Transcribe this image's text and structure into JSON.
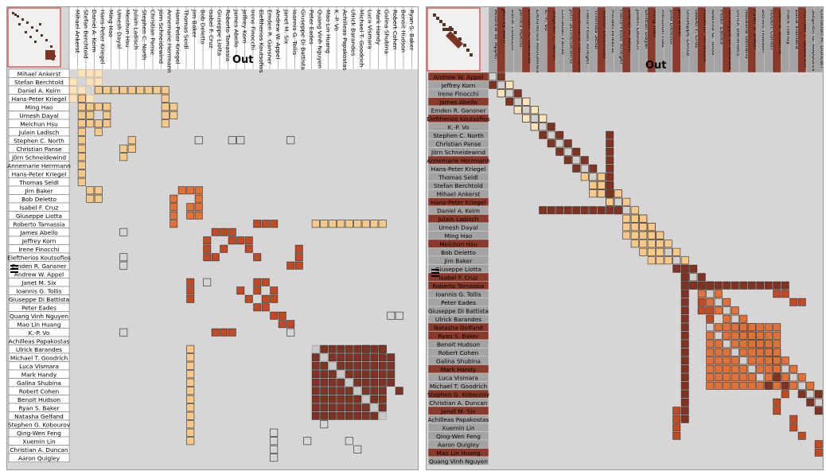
{
  "colors": {
    "background": "#d6d6d6",
    "grid": "#ffffff",
    "label_bg": "#ffffff",
    "light_tan": "#f6c98a",
    "pale": "#fbe3bb",
    "orange": "#e27137",
    "dark_brown": "#7e3323",
    "red_brown": "#c04a24",
    "dark_tab": "#8a3a2a",
    "mid_tab": "#a3a3a3"
  },
  "icons": {
    "overview": "overview-thumbnail",
    "cursor": "resize-cursor-icon"
  },
  "left": {
    "out_label": "Out",
    "names": [
      "Mihael Ankerst",
      "Stefan Berchtold",
      "Daniel A. Keim",
      "Hans-Peter Kriegel",
      "Ming Hao",
      "Umesh Dayal",
      "Meichun Hsu",
      "Julain Ladisch",
      "Stephen C. North",
      "Christian Panse",
      "Jörn Schneidewind",
      "Annemarie Herrmann",
      "Hans-Peter Kriegel",
      "Thomas Seidl",
      "Jim Baker",
      "Bob Deletto",
      "Isabel F. Cruz",
      "Giuseppe Liotta",
      "Roberto Tamassia",
      "James Abello",
      "Jeffrey Korn",
      "Irene Finocchi",
      "Eleftherios Koutsofios",
      "Emden R. Gansner",
      "Andrew W. Appel",
      "Janet M. Six",
      "Ioannis G. Tollis",
      "Giuseppe Di Battista",
      "Peter Eades",
      "Quang Vinh Nguyen",
      "Mao Lin Huang",
      "K.-P. Vo",
      "Achilleas Papakostas",
      "Ulrick Barandes",
      "Michael T. Goodrich",
      "Luca Vismara",
      "Mark Handy",
      "Galina Shubina",
      "Robert Cohen",
      "Benoit Hudson",
      "Ryan S. Baker",
      "Natasha Gelfand",
      "Stephen G. Kobourov",
      "Qing-Wen Feng",
      "Xuemin Lin",
      "Christian A. Duncan",
      "Aaron Quigley"
    ]
  },
  "right": {
    "out_label": "Out",
    "names": [
      "Andrew W. Appel",
      "Jeffrey Korn",
      "Irene Finocchi",
      "James Abello",
      "Emden R. Gansner",
      "Eleftherios Koutsofios",
      "K.-P. Vo",
      "Stephen C. North",
      "Christian Panse",
      "Jörn Schneidewind",
      "Annemarie Herrmann",
      "Hans-Peter Kriegel",
      "Thomas Seidl",
      "Stefan Berchtold",
      "Mihael Ankerst",
      "Hans-Peter Kriegel",
      "Daniel A. Keim",
      "Julain Ladisch",
      "Umesh Dayal",
      "Ming Hao",
      "Meichun Hsu",
      "Bob Deletto",
      "Jim Baker",
      "Giuseppe Liotta",
      "Isabel F. Cruz",
      "Roberto Tamassia",
      "Ioannis G. Tollis",
      "Peter Eades",
      "Giuseppe Di Battista",
      "Ulrick Barandes",
      "Natasha Gelfand",
      "Ryan S. Baker",
      "Benoit Hudson",
      "Robert Cohen",
      "Galina Shubina",
      "Mark Handy",
      "Luca Vismara",
      "Michael T. Goodrich",
      "Stephen G. Kobourov",
      "Christian A. Duncan",
      "Janet M. Six",
      "Achilleas Papakostas",
      "Xuemin Lin",
      "Qing-Wen Feng",
      "Aaron Quigley",
      "Mao Lin Huang",
      "Quang Vinh Nguyen"
    ]
  }
}
